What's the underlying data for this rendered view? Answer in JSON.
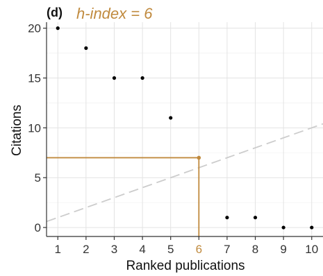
{
  "chart_data": {
    "type": "scatter",
    "panel_label": "(d)",
    "annotation": "h-index = 6",
    "xlabel": "Ranked publications",
    "ylabel": "Citations",
    "x_ticks": [
      1,
      2,
      3,
      4,
      5,
      6,
      7,
      8,
      9,
      10
    ],
    "y_ticks": [
      0,
      5,
      10,
      15,
      20
    ],
    "xlim": [
      0.6,
      10.4
    ],
    "ylim": [
      -0.9,
      20.6
    ],
    "points": [
      {
        "x": 1,
        "y": 20
      },
      {
        "x": 2,
        "y": 18
      },
      {
        "x": 3,
        "y": 15
      },
      {
        "x": 4,
        "y": 15
      },
      {
        "x": 5,
        "y": 11
      },
      {
        "x": 7,
        "y": 1
      },
      {
        "x": 8,
        "y": 1
      },
      {
        "x": 9,
        "y": 0
      },
      {
        "x": 10,
        "y": 0
      }
    ],
    "h_index": {
      "x": 6,
      "y": 7
    },
    "reference_line": {
      "x0": 0.6,
      "y0": 0.6,
      "x1": 10.4,
      "y1": 10.4
    },
    "grid": true,
    "colors": {
      "highlight": "#c08a3e",
      "points": "#000000",
      "reference_line": "#cccccc"
    }
  }
}
